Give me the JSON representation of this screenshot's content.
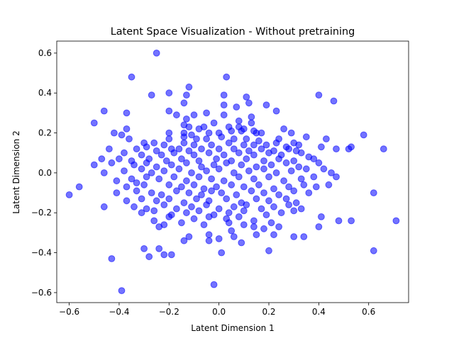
{
  "chart_data": {
    "type": "scatter",
    "title": "Latent Space Visualization - Without pretraining",
    "xlabel": "Latent Dimension 1",
    "ylabel": "Latent Dimension 2",
    "xlim": [
      -0.65,
      0.76
    ],
    "ylim": [
      -0.65,
      0.66
    ],
    "xticks": [
      -0.6,
      -0.4,
      -0.2,
      0.0,
      0.2,
      0.4,
      0.6
    ],
    "xtick_labels": [
      "−0.6",
      "−0.4",
      "−0.2",
      "0.0",
      "0.2",
      "0.4",
      "0.6"
    ],
    "yticks": [
      -0.6,
      -0.4,
      -0.2,
      0.0,
      0.2,
      0.4,
      0.6
    ],
    "ytick_labels": [
      "−0.6",
      "−0.4",
      "−0.2",
      "0.0",
      "0.2",
      "0.4",
      "0.6"
    ],
    "grid": false,
    "marker_color": "#0000ff",
    "marker_alpha": 0.55,
    "series": [
      {
        "points": [
          [
            -0.25,
            0.6
          ],
          [
            -0.35,
            0.48
          ],
          [
            0.03,
            0.48
          ],
          [
            -0.12,
            0.43
          ],
          [
            -0.2,
            0.4
          ],
          [
            -0.13,
            0.39
          ],
          [
            -0.27,
            0.39
          ],
          [
            0.02,
            0.39
          ],
          [
            0.4,
            0.39
          ],
          [
            0.11,
            0.38
          ],
          [
            0.12,
            0.35
          ],
          [
            0.46,
            0.36
          ],
          [
            -0.14,
            0.35
          ],
          [
            0.02,
            0.34
          ],
          [
            0.07,
            0.33
          ],
          [
            0.19,
            0.34
          ],
          [
            -0.46,
            0.31
          ],
          [
            -0.37,
            0.3
          ],
          [
            -0.2,
            0.31
          ],
          [
            -0.17,
            0.29
          ],
          [
            -0.1,
            0.29
          ],
          [
            0.02,
            0.29
          ],
          [
            -0.05,
            0.3
          ],
          [
            0.23,
            0.31
          ],
          [
            -0.13,
            0.27
          ],
          [
            0.13,
            0.28
          ],
          [
            -0.14,
            0.24
          ],
          [
            -0.02,
            0.25
          ],
          [
            0.08,
            0.26
          ],
          [
            -0.5,
            0.25
          ],
          [
            0.13,
            0.25
          ],
          [
            -0.12,
            0.23
          ],
          [
            -0.08,
            0.22
          ],
          [
            -0.06,
            0.23
          ],
          [
            0.04,
            0.23
          ],
          [
            0.08,
            0.23
          ],
          [
            0.1,
            0.22
          ],
          [
            0.14,
            0.21
          ],
          [
            0.26,
            0.22
          ],
          [
            -0.37,
            0.22
          ],
          [
            -0.42,
            0.2
          ],
          [
            -0.39,
            0.19
          ],
          [
            -0.2,
            0.2
          ],
          [
            -0.14,
            0.2
          ],
          [
            -0.11,
            0.19
          ],
          [
            -0.04,
            0.2
          ],
          [
            0.0,
            0.2
          ],
          [
            0.05,
            0.21
          ],
          [
            0.09,
            0.21
          ],
          [
            0.15,
            0.2
          ],
          [
            0.17,
            0.2
          ],
          [
            0.29,
            0.2
          ],
          [
            0.35,
            0.18
          ],
          [
            0.43,
            0.17
          ],
          [
            0.58,
            0.19
          ],
          [
            -0.36,
            0.17
          ],
          [
            -0.2,
            0.17
          ],
          [
            -0.14,
            0.18
          ],
          [
            -0.09,
            0.17
          ],
          [
            -0.05,
            0.17
          ],
          [
            0.01,
            0.18
          ],
          [
            0.06,
            0.17
          ],
          [
            0.11,
            0.17
          ],
          [
            0.16,
            0.16
          ],
          [
            0.24,
            0.17
          ],
          [
            0.3,
            0.15
          ],
          [
            -0.3,
            0.15
          ],
          [
            -0.26,
            0.15
          ],
          [
            -0.22,
            0.14
          ],
          [
            -0.14,
            0.15
          ],
          [
            -0.1,
            0.14
          ],
          [
            -0.03,
            0.14
          ],
          [
            0.04,
            0.15
          ],
          [
            0.1,
            0.14
          ],
          [
            0.14,
            0.14
          ],
          [
            0.19,
            0.14
          ],
          [
            0.23,
            0.15
          ],
          [
            0.27,
            0.13
          ],
          [
            0.32,
            0.14
          ],
          [
            0.41,
            0.13
          ],
          [
            -0.44,
            0.12
          ],
          [
            -0.33,
            0.12
          ],
          [
            -0.29,
            0.13
          ],
          [
            -0.25,
            0.11
          ],
          [
            -0.19,
            0.12
          ],
          [
            -0.16,
            0.12
          ],
          [
            -0.12,
            0.11
          ],
          [
            -0.07,
            0.12
          ],
          [
            0.0,
            0.12
          ],
          [
            0.06,
            0.12
          ],
          [
            0.12,
            0.11
          ],
          [
            0.17,
            0.12
          ],
          [
            0.22,
            0.11
          ],
          [
            0.28,
            0.12
          ],
          [
            0.31,
            0.11
          ],
          [
            0.47,
            0.12
          ],
          [
            0.52,
            0.12
          ],
          [
            0.53,
            0.13
          ],
          [
            0.66,
            0.12
          ],
          [
            -0.38,
            0.1
          ],
          [
            -0.31,
            0.09
          ],
          [
            -0.23,
            0.09
          ],
          [
            -0.18,
            0.1
          ],
          [
            -0.1,
            0.09
          ],
          [
            -0.04,
            0.1
          ],
          [
            0.02,
            0.09
          ],
          [
            0.08,
            0.1
          ],
          [
            0.14,
            0.09
          ],
          [
            0.2,
            0.1
          ],
          [
            0.25,
            0.09
          ],
          [
            0.33,
            0.1
          ],
          [
            -0.47,
            0.07
          ],
          [
            -0.4,
            0.07
          ],
          [
            -0.35,
            0.06
          ],
          [
            -0.28,
            0.07
          ],
          [
            -0.21,
            0.06
          ],
          [
            -0.15,
            0.07
          ],
          [
            -0.08,
            0.06
          ],
          [
            -0.01,
            0.07
          ],
          [
            0.05,
            0.06
          ],
          [
            0.11,
            0.07
          ],
          [
            0.18,
            0.06
          ],
          [
            0.24,
            0.07
          ],
          [
            0.3,
            0.06
          ],
          [
            0.36,
            0.08
          ],
          [
            0.38,
            0.07
          ],
          [
            -0.5,
            0.04
          ],
          [
            -0.43,
            0.05
          ],
          [
            -0.34,
            0.04
          ],
          [
            -0.29,
            0.05
          ],
          [
            -0.25,
            0.03
          ],
          [
            -0.19,
            0.04
          ],
          [
            -0.13,
            0.05
          ],
          [
            -0.07,
            0.03
          ],
          [
            -0.02,
            0.04
          ],
          [
            0.03,
            0.05
          ],
          [
            0.09,
            0.04
          ],
          [
            0.15,
            0.03
          ],
          [
            0.21,
            0.04
          ],
          [
            0.27,
            0.05
          ],
          [
            0.32,
            0.03
          ],
          [
            0.4,
            0.05
          ],
          [
            -0.46,
            0.0
          ],
          [
            -0.38,
            0.01
          ],
          [
            -0.31,
            0.02
          ],
          [
            -0.27,
            0.0
          ],
          [
            -0.22,
            0.01
          ],
          [
            -0.16,
            0.02
          ],
          [
            -0.11,
            0.0
          ],
          [
            -0.05,
            0.01
          ],
          [
            0.0,
            0.02
          ],
          [
            0.06,
            0.0
          ],
          [
            0.12,
            0.01
          ],
          [
            0.18,
            0.02
          ],
          [
            0.23,
            0.0
          ],
          [
            0.29,
            0.01
          ],
          [
            0.35,
            0.02
          ],
          [
            0.42,
            0.02
          ],
          [
            0.45,
            0.0
          ],
          [
            -0.41,
            -0.04
          ],
          [
            -0.35,
            -0.03
          ],
          [
            -0.33,
            -0.05
          ],
          [
            -0.29,
            -0.02
          ],
          [
            -0.24,
            -0.03
          ],
          [
            -0.18,
            -0.02
          ],
          [
            -0.13,
            -0.04
          ],
          [
            -0.08,
            -0.02
          ],
          [
            -0.03,
            -0.03
          ],
          [
            0.02,
            -0.04
          ],
          [
            0.08,
            -0.02
          ],
          [
            0.14,
            -0.03
          ],
          [
            0.2,
            -0.02
          ],
          [
            0.26,
            -0.04
          ],
          [
            0.33,
            -0.03
          ],
          [
            0.38,
            -0.02
          ],
          [
            0.47,
            -0.02
          ],
          [
            0.44,
            -0.06
          ],
          [
            -0.56,
            -0.07
          ],
          [
            -0.37,
            -0.07
          ],
          [
            -0.3,
            -0.06
          ],
          [
            -0.2,
            -0.06
          ],
          [
            -0.15,
            -0.07
          ],
          [
            -0.1,
            -0.06
          ],
          [
            -0.06,
            -0.08
          ],
          [
            -0.01,
            -0.07
          ],
          [
            0.05,
            -0.06
          ],
          [
            0.1,
            -0.07
          ],
          [
            0.16,
            -0.06
          ],
          [
            0.22,
            -0.08
          ],
          [
            0.28,
            -0.07
          ],
          [
            0.34,
            -0.06
          ],
          [
            0.39,
            -0.07
          ],
          [
            -0.6,
            -0.11
          ],
          [
            -0.41,
            -0.1
          ],
          [
            -0.33,
            -0.09
          ],
          [
            -0.27,
            -0.1
          ],
          [
            -0.23,
            -0.11
          ],
          [
            -0.17,
            -0.09
          ],
          [
            -0.12,
            -0.1
          ],
          [
            -0.07,
            -0.11
          ],
          [
            -0.03,
            -0.09
          ],
          [
            0.01,
            -0.1
          ],
          [
            0.07,
            -0.11
          ],
          [
            0.13,
            -0.09
          ],
          [
            0.18,
            -0.1
          ],
          [
            0.24,
            -0.11
          ],
          [
            0.3,
            -0.09
          ],
          [
            0.36,
            -0.1
          ],
          [
            0.62,
            -0.1
          ],
          [
            -0.37,
            -0.14
          ],
          [
            -0.31,
            -0.13
          ],
          [
            -0.25,
            -0.14
          ],
          [
            -0.2,
            -0.13
          ],
          [
            -0.14,
            -0.15
          ],
          [
            -0.09,
            -0.13
          ],
          [
            -0.04,
            -0.14
          ],
          [
            0.03,
            -0.13
          ],
          [
            0.09,
            -0.15
          ],
          [
            0.15,
            -0.13
          ],
          [
            0.2,
            -0.14
          ],
          [
            0.27,
            -0.13
          ],
          [
            0.31,
            -0.15
          ],
          [
            -0.46,
            -0.17
          ],
          [
            -0.34,
            -0.17
          ],
          [
            -0.29,
            -0.18
          ],
          [
            -0.22,
            -0.16
          ],
          [
            -0.17,
            -0.18
          ],
          [
            -0.11,
            -0.17
          ],
          [
            -0.05,
            -0.16
          ],
          [
            0.0,
            -0.18
          ],
          [
            0.06,
            -0.17
          ],
          [
            0.11,
            -0.16
          ],
          [
            0.17,
            -0.18
          ],
          [
            0.22,
            -0.17
          ],
          [
            0.28,
            -0.16
          ],
          [
            0.33,
            -0.18
          ],
          [
            -0.31,
            -0.2
          ],
          [
            -0.26,
            -0.19
          ],
          [
            -0.19,
            -0.21
          ],
          [
            -0.13,
            -0.2
          ],
          [
            -0.08,
            -0.19
          ],
          [
            -0.02,
            -0.21
          ],
          [
            0.04,
            -0.2
          ],
          [
            0.1,
            -0.19
          ],
          [
            0.19,
            -0.21
          ],
          [
            0.25,
            -0.2
          ],
          [
            0.3,
            -0.19
          ],
          [
            -0.2,
            -0.22
          ],
          [
            -0.1,
            -0.23
          ],
          [
            -0.04,
            -0.22
          ],
          [
            0.03,
            -0.23
          ],
          [
            0.08,
            -0.22
          ],
          [
            0.14,
            -0.24
          ],
          [
            0.41,
            -0.22
          ],
          [
            0.48,
            -0.24
          ],
          [
            0.53,
            -0.24
          ],
          [
            -0.26,
            -0.24
          ],
          [
            -0.15,
            -0.25
          ],
          [
            -0.06,
            -0.26
          ],
          [
            0.04,
            -0.25
          ],
          [
            0.1,
            -0.26
          ],
          [
            0.21,
            -0.25
          ],
          [
            -0.24,
            -0.27
          ],
          [
            -0.22,
            -0.26
          ],
          [
            0.05,
            -0.29
          ],
          [
            0.14,
            -0.27
          ],
          [
            0.18,
            -0.28
          ],
          [
            0.24,
            -0.27
          ],
          [
            0.4,
            -0.27
          ],
          [
            -0.12,
            -0.32
          ],
          [
            -0.04,
            -0.31
          ],
          [
            0.0,
            -0.33
          ],
          [
            0.06,
            -0.32
          ],
          [
            0.15,
            -0.31
          ],
          [
            0.22,
            -0.31
          ],
          [
            0.3,
            -0.32
          ],
          [
            0.34,
            -0.32
          ],
          [
            -0.14,
            -0.34
          ],
          [
            -0.04,
            -0.34
          ],
          [
            0.09,
            -0.35
          ],
          [
            -0.3,
            -0.38
          ],
          [
            -0.24,
            -0.38
          ],
          [
            0.01,
            -0.4
          ],
          [
            0.2,
            -0.39
          ],
          [
            0.62,
            -0.39
          ],
          [
            -0.22,
            -0.41
          ],
          [
            -0.19,
            -0.41
          ],
          [
            -0.28,
            -0.42
          ],
          [
            -0.43,
            -0.43
          ],
          [
            -0.39,
            -0.59
          ],
          [
            -0.02,
            -0.56
          ],
          [
            0.71,
            -0.24
          ]
        ]
      }
    ]
  }
}
